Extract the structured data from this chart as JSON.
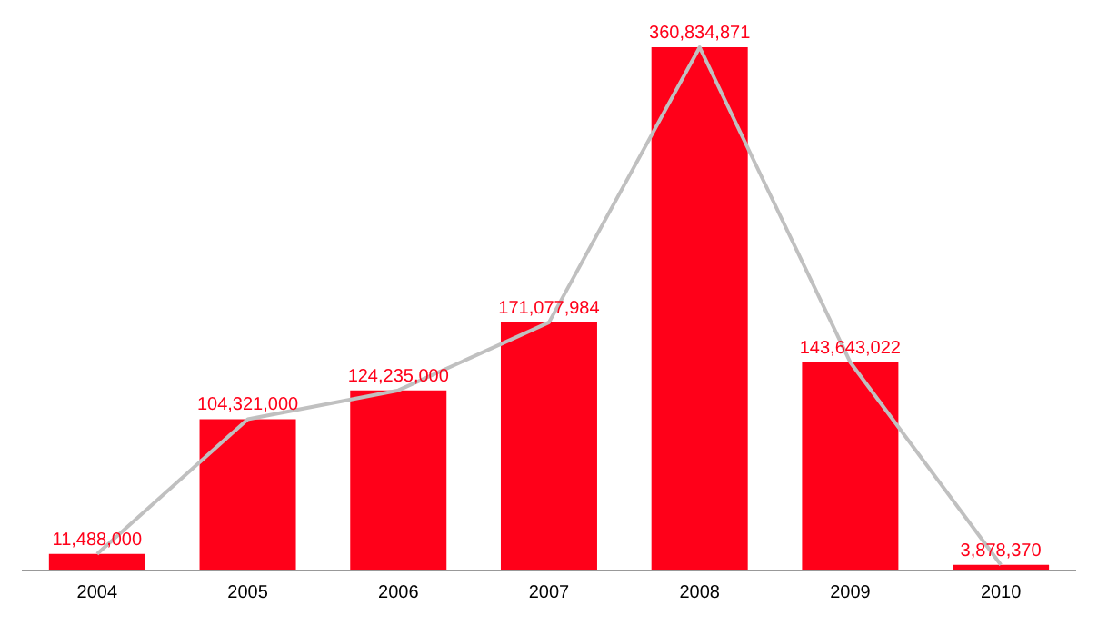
{
  "chart_data": {
    "type": "bar",
    "categories": [
      "2004",
      "2005",
      "2006",
      "2007",
      "2008",
      "2009",
      "2010"
    ],
    "series": [
      {
        "color": "#ff0019",
        "values": [
          11488000,
          104321000,
          124235000,
          171077984,
          360834871,
          143643022,
          3878370
        ],
        "value_labels": [
          "11,488,000",
          "104,321,000",
          "124,235,000",
          "171,077,984",
          "360,834,871",
          "143,643,022",
          "3,878,370"
        ]
      },
      {
        "type": "line",
        "color": "#c0c0c0",
        "values": [
          11488000,
          104321000,
          124235000,
          171077984,
          360834871,
          143643022,
          3878370
        ]
      }
    ],
    "grid": false,
    "legend": false,
    "marker": "none"
  }
}
